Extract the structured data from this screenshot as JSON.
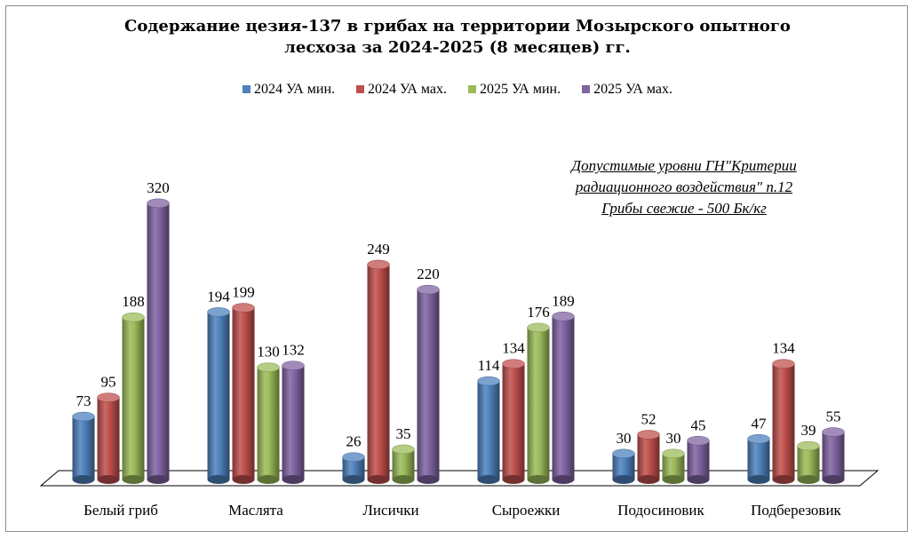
{
  "title": {
    "line1": "Содержание цезия-137 в грибах на территории Мозырского опытного",
    "line2": "лесхоза за 2024-2025 (8 месяцев) гг."
  },
  "note": {
    "line1": "Допустимые уровни ГН\"Критерии",
    "line2": "радиационного воздействия\" п.12",
    "line3": "Грибы свежие - 500 Бк/кг"
  },
  "chart_data": {
    "type": "bar",
    "title": "Содержание цезия-137 в грибах на территории Мозырского опытного лесхоза за 2024-2025 (8 месяцев) гг.",
    "categories": [
      "Белый гриб",
      "Маслята",
      "Лисички",
      "Сыроежки",
      "Подосиновик",
      "Подберезовик"
    ],
    "series": [
      {
        "name": "2024 УА мин.",
        "color": "#4f81bd",
        "values": [
          73,
          194,
          26,
          114,
          30,
          47
        ]
      },
      {
        "name": "2024 УА мах.",
        "color": "#c0504d",
        "values": [
          95,
          199,
          249,
          134,
          52,
          134
        ]
      },
      {
        "name": "2025 УА мин.",
        "color": "#9bbb59",
        "values": [
          188,
          130,
          35,
          176,
          30,
          39
        ]
      },
      {
        "name": "2025 УА мах.",
        "color": "#8064a2",
        "values": [
          320,
          132,
          220,
          189,
          45,
          55
        ]
      }
    ],
    "ylim": [
      0,
      360
    ],
    "grid": false,
    "legend": "top",
    "style": "3d-cylinder"
  }
}
